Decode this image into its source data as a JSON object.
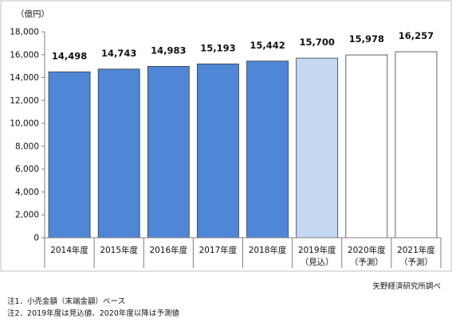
{
  "chart_data": {
    "type": "bar",
    "unit_label": "（億円）",
    "categories": [
      "2014年度",
      "2015年度",
      "2016年度",
      "2017年度",
      "2018年度",
      "2019年度",
      "2020年度",
      "2021年度"
    ],
    "sub_labels": [
      "",
      "",
      "",
      "",
      "",
      "（見込）",
      "（予測）",
      "（予測）"
    ],
    "values": [
      14498,
      14743,
      14983,
      15193,
      15442,
      15700,
      15978,
      16257
    ],
    "value_labels": [
      "14,498",
      "14,743",
      "14,983",
      "15,193",
      "15,442",
      "15,700",
      "15,978",
      "16,257"
    ],
    "bar_status": [
      "actual",
      "actual",
      "actual",
      "actual",
      "actual",
      "estimate",
      "forecast",
      "forecast"
    ],
    "ylim": [
      0,
      18000
    ],
    "yticks": [
      0,
      2000,
      4000,
      6000,
      8000,
      10000,
      12000,
      14000,
      16000,
      18000
    ],
    "ytick_labels": [
      "0",
      "2,000",
      "4,000",
      "6,000",
      "8,000",
      "10,000",
      "12,000",
      "14,000",
      "16,000",
      "18,000"
    ],
    "grid": false,
    "colors": {
      "actual": "#4f87d6",
      "estimate": "#c5d7f1",
      "forecast": "#ffffff",
      "bar_edge": "#3a3a3a"
    }
  },
  "source": "矢野経済研究所調べ",
  "notes": [
    "注1．小売金額（末端金額）ベース",
    "注2．2019年度は見込値、2020年度以降は予測値"
  ]
}
